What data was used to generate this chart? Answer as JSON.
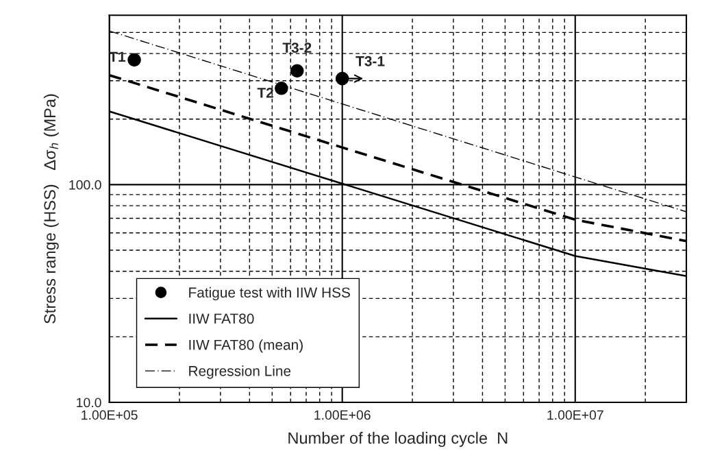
{
  "chart_data": {
    "type": "line",
    "xlabel": "Number of the loading cycle  N",
    "ylabel": "Stress range (HSS)   Δσ$_{h}$ (MPa)",
    "log": "xy",
    "xlim": [
      100000,
      30000000
    ],
    "xticks": [
      {
        "value": 100000,
        "label": "1.00E+05"
      },
      {
        "value": 200000,
        "label": null
      },
      {
        "value": 300000,
        "label": null
      },
      {
        "value": 400000,
        "label": null
      },
      {
        "value": 500000,
        "label": null
      },
      {
        "value": 600000,
        "label": null
      },
      {
        "value": 700000,
        "label": null
      },
      {
        "value": 800000,
        "label": null
      },
      {
        "value": 900000,
        "label": null
      },
      {
        "value": 1000000,
        "label": "1.00E+06"
      },
      {
        "value": 2000000,
        "label": null
      },
      {
        "value": 3000000,
        "label": null
      },
      {
        "value": 4000000,
        "label": null
      },
      {
        "value": 5000000,
        "label": null
      },
      {
        "value": 6000000,
        "label": null
      },
      {
        "value": 7000000,
        "label": null
      },
      {
        "value": 8000000,
        "label": null
      },
      {
        "value": 9000000,
        "label": null
      },
      {
        "value": 10000000,
        "label": "1.00E+07"
      },
      {
        "value": 20000000,
        "label": null
      }
    ],
    "ylim": [
      10,
      600
    ],
    "yticks": [
      {
        "value": 10,
        "label": "10.0"
      },
      {
        "value": 20,
        "label": null
      },
      {
        "value": 30,
        "label": null
      },
      {
        "value": 40,
        "label": null
      },
      {
        "value": 50,
        "label": null
      },
      {
        "value": 60,
        "label": null
      },
      {
        "value": 70,
        "label": null
      },
      {
        "value": 80,
        "label": null
      },
      {
        "value": 90,
        "label": null
      },
      {
        "value": 100,
        "label": "100.0"
      },
      {
        "value": 200,
        "label": null
      },
      {
        "value": 300,
        "label": null
      },
      {
        "value": 400,
        "label": null
      },
      {
        "value": 500,
        "label": null
      }
    ],
    "grid": true,
    "legend": "bottom left",
    "series": [
      {
        "name": "Fatigue test with IIW HSS",
        "type": "scatter",
        "marker": "circle",
        "color": "#000000",
        "x": [
          128000,
          548000,
          640000,
          1000000
        ],
        "values": [
          374,
          277,
          333,
          307
        ]
      },
      {
        "name": "IIW FAT80",
        "line_style": "solid",
        "color": "#000000",
        "x": [
          100000,
          10000000,
          30000000
        ],
        "values": [
          217,
          47,
          38
        ]
      },
      {
        "name": "IIW FAT80 (mean)",
        "line_style": "dashed",
        "color": "#000000",
        "x": [
          100000,
          10000000,
          30000000
        ],
        "values": [
          318,
          69,
          55
        ]
      },
      {
        "name": "Regression Line",
        "line_style": "dashdot",
        "color": "#000000",
        "x": [
          100000,
          30000000
        ],
        "values": [
          508,
          75
        ]
      }
    ],
    "annotations": [
      {
        "text": "T1",
        "x": 128000,
        "y": 374
      },
      {
        "text": "T2",
        "x": 548000,
        "y": 277
      },
      {
        "text": "T3-2",
        "x": 640000,
        "y": 333
      },
      {
        "text": "T3-1",
        "x": 1000000,
        "y": 307
      }
    ]
  }
}
